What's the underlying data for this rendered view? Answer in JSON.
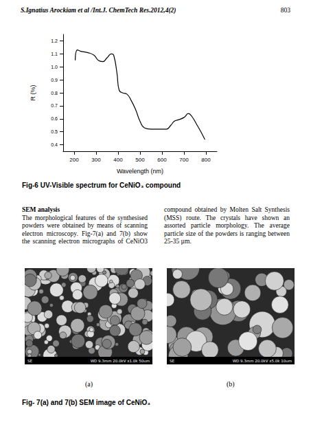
{
  "header": {
    "left": "S.Ignatius Arockiam et al /Int.J. ChemTech Res.2012,4(2)",
    "page": "803"
  },
  "chart_data": {
    "type": "line",
    "x_label": "Wavelength (nm)",
    "y_label": "R (%)",
    "color": "#000000",
    "grid": false,
    "x": [
      205,
      215,
      230,
      260,
      290,
      310,
      330,
      350,
      370,
      380,
      395,
      405,
      420,
      440,
      460,
      480,
      500,
      520,
      550,
      600,
      620,
      640,
      655,
      670,
      700,
      720,
      735,
      760,
      780,
      795
    ],
    "values": [
      1.05,
      1.13,
      1.12,
      1.11,
      1.09,
      1.05,
      1.04,
      1.07,
      1.1,
      1.09,
      0.95,
      0.82,
      0.8,
      0.79,
      0.74,
      0.67,
      0.58,
      0.53,
      0.52,
      0.52,
      0.52,
      0.55,
      0.58,
      0.59,
      0.61,
      0.64,
      0.62,
      0.55,
      0.49,
      0.44
    ],
    "xlim": [
      150,
      850
    ],
    "xticks": [
      200,
      300,
      400,
      500,
      600,
      700,
      800
    ],
    "ylim": [
      0.35,
      1.25
    ],
    "yticks": [
      0.4,
      0.5,
      0.6,
      0.7,
      0.8,
      0.9,
      {
        "value": 1,
        "label": "1.0"
      },
      1.1,
      1.2
    ]
  },
  "figure6_caption": "Fig-6 UV-Visible spectrum for CeNiO₃ compound",
  "section": {
    "heading": "SEM analysis",
    "paragraph": "The morphological features of the synthesised powders were obtained by means of scanning electron microscopy. Fig-7(a) and 7(b) show the scanning electron micrographs of CeNiO3 compound obtained by Molten Salt Synthesis (MSS) route. The crystals have shown an assorted particle morphology. The average particle size of the powders is ranging between 25-35 µm."
  },
  "images": [
    {
      "label": "(a)",
      "bar_left": "SE",
      "bar_right": "WD 9.3mm 20.0kV x1.0k 50um"
    },
    {
      "label": "(b)",
      "bar_left": "SE",
      "bar_right": "WD 9.3mm 20.0kV x5.0k 10um"
    }
  ],
  "figure7_caption": "Fig- 7(a) and 7(b) SEM image of CeNiO₃"
}
